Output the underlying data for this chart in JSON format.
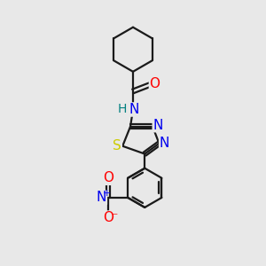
{
  "background_color": "#e8e8e8",
  "bond_color": "#1a1a1a",
  "atom_colors": {
    "N": "#0000ee",
    "O": "#ff0000",
    "S": "#cccc00",
    "H": "#008080",
    "C": "#1a1a1a"
  },
  "figsize": [
    3.0,
    3.0
  ],
  "dpi": 100
}
